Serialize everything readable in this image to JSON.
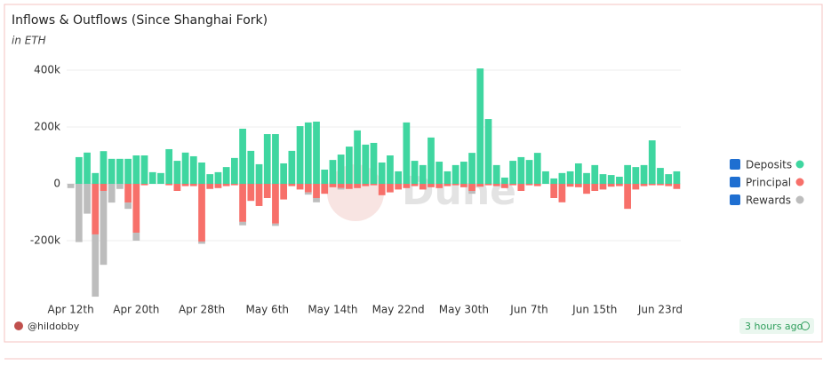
{
  "chart_data": {
    "type": "bar",
    "stacked": true,
    "title": "Inflows & Outflows (Since Shanghai Fork)",
    "subtitle": "in ETH",
    "watermark": "Dune",
    "author": "@hildobby",
    "updated": "3 hours ago",
    "categories": [
      "Apr 12th",
      null,
      null,
      null,
      null,
      null,
      null,
      null,
      "Apr 20th",
      null,
      null,
      null,
      null,
      null,
      null,
      null,
      "Apr 28th",
      null,
      null,
      null,
      null,
      null,
      null,
      null,
      "May 6th",
      null,
      null,
      null,
      null,
      null,
      null,
      null,
      "May 14th",
      null,
      null,
      null,
      null,
      null,
      null,
      null,
      "May 22nd",
      null,
      null,
      null,
      null,
      null,
      null,
      null,
      "May 30th",
      null,
      null,
      null,
      null,
      null,
      null,
      null,
      "Jun 7th",
      null,
      null,
      null,
      null,
      null,
      null,
      null,
      "Jun 15th",
      null,
      null,
      null,
      null,
      null,
      null,
      null,
      "Jun 23rd",
      null,
      null
    ],
    "series": [
      {
        "name": "Deposits",
        "color": "#3fd6a0",
        "values": [
          0,
          94000,
          110000,
          38000,
          115000,
          88000,
          88000,
          88000,
          100000,
          100000,
          41000,
          38000,
          122000,
          81000,
          110000,
          97000,
          75000,
          34000,
          41000,
          59000,
          91000,
          194000,
          116000,
          69000,
          175000,
          175000,
          72000,
          116000,
          203000,
          216000,
          219000,
          50000,
          84000,
          103000,
          131000,
          188000,
          138000,
          144000,
          75000,
          100000,
          44000,
          216000,
          81000,
          66000,
          163000,
          78000,
          44000,
          66000,
          78000,
          109000,
          406000,
          228000,
          66000,
          22000,
          81000,
          94000,
          84000,
          109000,
          44000,
          19000,
          38000,
          44000,
          72000,
          38000,
          66000,
          34000,
          31000,
          25000,
          66000,
          59000,
          66000,
          153000,
          56000,
          34000,
          44000
        ]
      },
      {
        "name": "Principal",
        "color": "#f7706a",
        "values": [
          0,
          0,
          0,
          -178000,
          -25000,
          0,
          0,
          -66000,
          -172000,
          -5000,
          0,
          0,
          -5000,
          -25000,
          -8000,
          -8000,
          -203000,
          -18000,
          -15000,
          -8000,
          -5000,
          -134000,
          -60000,
          -78000,
          -50000,
          -140000,
          -55000,
          -8000,
          -20000,
          -30000,
          -50000,
          -35000,
          -12000,
          -15000,
          -18000,
          -15000,
          -8000,
          -5000,
          -40000,
          -30000,
          -20000,
          -15000,
          -8000,
          -20000,
          -12000,
          -15000,
          -8000,
          -5000,
          -12000,
          -25000,
          -10000,
          -5000,
          -8000,
          -15000,
          -5000,
          -25000,
          -5000,
          -8000,
          0,
          -50000,
          -65000,
          -10000,
          -12000,
          -35000,
          -25000,
          -20000,
          -10000,
          -8000,
          -88000,
          -20000,
          -8000,
          -5000,
          -5000,
          -8000,
          -18000
        ]
      },
      {
        "name": "Rewards",
        "color": "#bdbdbd",
        "values": [
          -15000,
          -205000,
          -105000,
          -219000,
          -260000,
          -66000,
          -18000,
          -22000,
          -28000,
          0,
          0,
          0,
          0,
          0,
          0,
          0,
          -8000,
          0,
          0,
          0,
          0,
          -12000,
          0,
          0,
          0,
          -8000,
          0,
          0,
          0,
          -8000,
          -15000,
          0,
          0,
          -5000,
          0,
          0,
          0,
          0,
          0,
          0,
          0,
          0,
          0,
          0,
          0,
          0,
          0,
          0,
          0,
          -10000,
          0,
          0,
          0,
          0,
          0,
          0,
          0,
          0,
          0,
          0,
          0,
          0,
          0,
          0,
          0,
          0,
          0,
          0,
          0,
          0,
          0,
          0,
          0,
          0,
          0
        ]
      }
    ],
    "ylim": [
      -400000,
      450000
    ],
    "yticks": [
      {
        "value": -200000,
        "label": "-200k"
      },
      0,
      {
        "value": 200000,
        "label": "200k"
      },
      {
        "value": 400000,
        "label": "400k"
      }
    ],
    "grid": true,
    "legend": "right"
  }
}
